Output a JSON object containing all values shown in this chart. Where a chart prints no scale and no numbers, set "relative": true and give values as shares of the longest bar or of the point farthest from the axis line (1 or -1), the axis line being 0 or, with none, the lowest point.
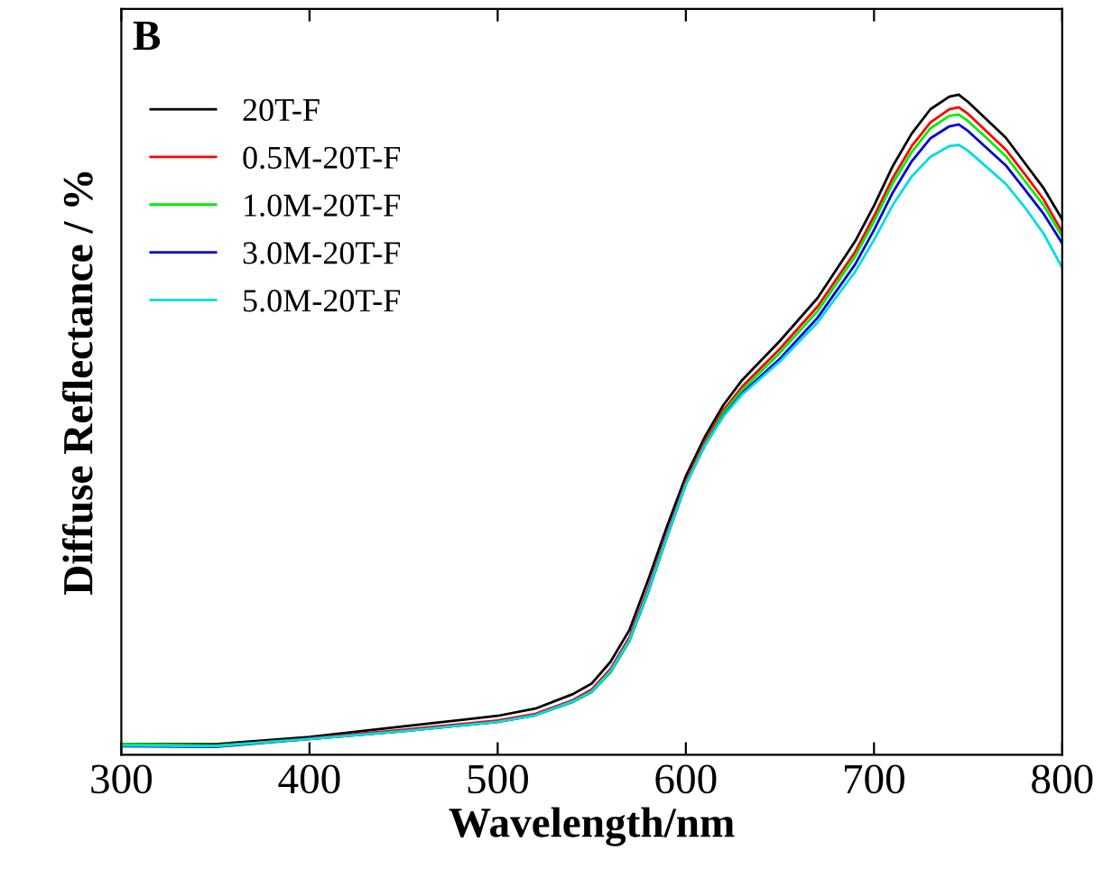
{
  "chart_data": {
    "type": "line",
    "relative": true,
    "xlabel": "Wavelength/nm",
    "ylabel": "Diffuse Reflectance / %",
    "annotations": [
      "B"
    ],
    "x": [
      300,
      350,
      400,
      450,
      500,
      520,
      540,
      550,
      560,
      570,
      580,
      590,
      600,
      610,
      620,
      630,
      650,
      670,
      690,
      700,
      710,
      720,
      730,
      740,
      745,
      750,
      760,
      770,
      780,
      790,
      800
    ],
    "xlim": [
      300,
      800
    ],
    "xticks": [
      300,
      400,
      500,
      600,
      700,
      800
    ],
    "legend": "top left",
    "grid": false,
    "marker": "none",
    "line_style": "solid",
    "series": [
      {
        "name": "20T-F",
        "color": "#000000",
        "values": [
          0.016,
          0.016,
          0.027,
          0.043,
          0.059,
          0.07,
          0.092,
          0.108,
          0.141,
          0.189,
          0.265,
          0.346,
          0.422,
          0.481,
          0.53,
          0.568,
          0.627,
          0.692,
          0.778,
          0.832,
          0.892,
          0.941,
          0.978,
          0.997,
          1.0,
          0.989,
          0.962,
          0.935,
          0.897,
          0.859,
          0.811
        ]
      },
      {
        "name": "0.5M-20T-F",
        "color": "#ff0000",
        "values": [
          null,
          null,
          0.025,
          0.038,
          0.052,
          0.062,
          0.083,
          0.099,
          0.13,
          0.178,
          0.252,
          0.335,
          0.414,
          0.474,
          0.522,
          0.558,
          0.615,
          0.679,
          0.762,
          0.816,
          0.874,
          0.922,
          0.958,
          0.978,
          0.981,
          0.971,
          0.944,
          0.917,
          0.88,
          0.842,
          0.792
        ]
      },
      {
        "name": "1.0M-20T-F",
        "color": "#00ee00",
        "values": [
          0.016,
          0.014,
          0.024,
          0.036,
          0.05,
          0.06,
          0.08,
          0.095,
          0.125,
          0.172,
          0.246,
          0.33,
          0.41,
          0.47,
          0.518,
          0.553,
          0.609,
          0.672,
          0.755,
          0.808,
          0.866,
          0.913,
          0.949,
          0.968,
          0.97,
          0.96,
          0.934,
          0.907,
          0.87,
          0.833,
          0.785
        ]
      },
      {
        "name": "3.0M-20T-F",
        "color": "#0000dd",
        "values": [
          0.013,
          0.012,
          0.024,
          0.036,
          0.05,
          0.06,
          0.081,
          0.096,
          0.127,
          0.174,
          0.248,
          0.331,
          0.41,
          0.468,
          0.514,
          0.548,
          0.6,
          0.662,
          0.743,
          0.795,
          0.852,
          0.899,
          0.934,
          0.952,
          0.955,
          0.945,
          0.919,
          0.893,
          0.857,
          0.82,
          0.775
        ]
      },
      {
        "name": "5.0M-20T-F",
        "color": "#00dddd",
        "values": [
          0.014,
          0.013,
          0.024,
          0.036,
          0.05,
          0.06,
          0.081,
          0.096,
          0.127,
          0.174,
          0.248,
          0.331,
          0.41,
          0.468,
          0.513,
          0.546,
          0.596,
          0.655,
          0.732,
          0.78,
          0.833,
          0.876,
          0.906,
          0.922,
          0.924,
          0.915,
          0.89,
          0.865,
          0.83,
          0.79,
          0.738
        ]
      }
    ]
  }
}
